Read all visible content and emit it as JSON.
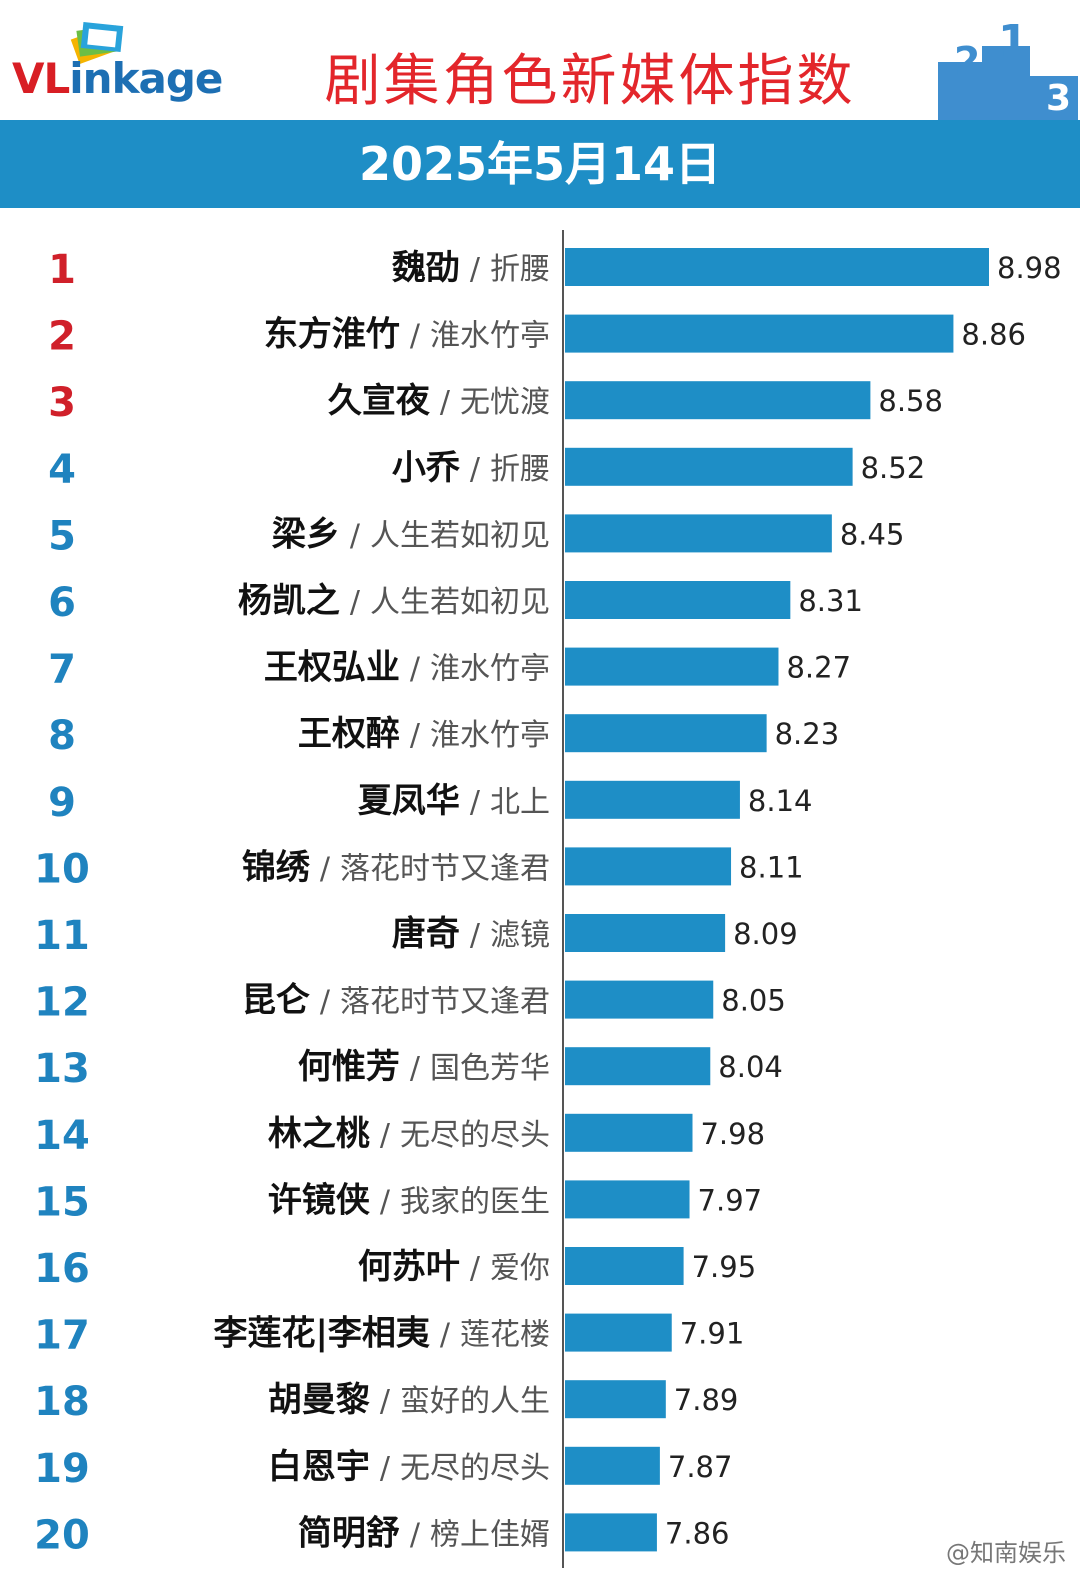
{
  "header": {
    "logo_text_red": "VL",
    "logo_text_blue": "inkage",
    "title": "剧集角色新媒体指数",
    "podium_numbers": [
      "2",
      "1",
      "3"
    ]
  },
  "date_bar": {
    "date": "2025年5月14日"
  },
  "watermark": "@知南娱乐",
  "colors": {
    "bar": "#1e8ec6",
    "rank_top3": "#d0202a",
    "rank_other": "#1f83bf",
    "title": "#e3262b",
    "header_band": "#1e8ec6"
  },
  "chart_data": {
    "type": "bar",
    "orientation": "horizontal",
    "ranks": [
      "1",
      "2",
      "3",
      "4",
      "5",
      "6",
      "7",
      "8",
      "9",
      "10",
      "11",
      "12",
      "13",
      "14",
      "15",
      "16",
      "17",
      "18",
      "19",
      "20"
    ],
    "categories": [
      "魏劭",
      "东方淮竹",
      "久宣夜",
      "小乔",
      "梁乡",
      "杨凯之",
      "王权弘业",
      "王权醉",
      "夏凤华",
      "锦绣",
      "唐奇",
      "昆仑",
      "何惟芳",
      "林之桃",
      "许镜侠",
      "何苏叶",
      "李莲花|李相夷",
      "胡曼黎",
      "白恩宇",
      "简明舒"
    ],
    "subtitles": [
      "折腰",
      "淮水竹亭",
      "无忧渡",
      "折腰",
      "人生若如初见",
      "人生若如初见",
      "淮水竹亭",
      "淮水竹亭",
      "北上",
      "落花时节又逢君",
      "滤镜",
      "落花时节又逢君",
      "国色芳华",
      "无尽的尽头",
      "我家的医生",
      "爱你",
      "莲花楼",
      "蛮好的人生",
      "无尽的尽头",
      "榜上佳婿"
    ],
    "separator": "/",
    "values": [
      8.98,
      8.86,
      8.58,
      8.52,
      8.45,
      8.31,
      8.27,
      8.23,
      8.14,
      8.11,
      8.09,
      8.05,
      8.04,
      7.98,
      7.97,
      7.95,
      7.91,
      7.89,
      7.87,
      7.86
    ],
    "value_labels": [
      "8.98",
      "8.86",
      "8.58",
      "8.52",
      "8.45",
      "8.31",
      "8.27",
      "8.23",
      "8.14",
      "8.11",
      "8.09",
      "8.05",
      "8.04",
      "7.98",
      "7.97",
      "7.95",
      "7.91",
      "7.89",
      "7.87",
      "7.86"
    ],
    "title": "剧集角色新媒体指数",
    "date": "2025年5月14日",
    "axis_visible": false,
    "grid": false,
    "legend": "none"
  }
}
